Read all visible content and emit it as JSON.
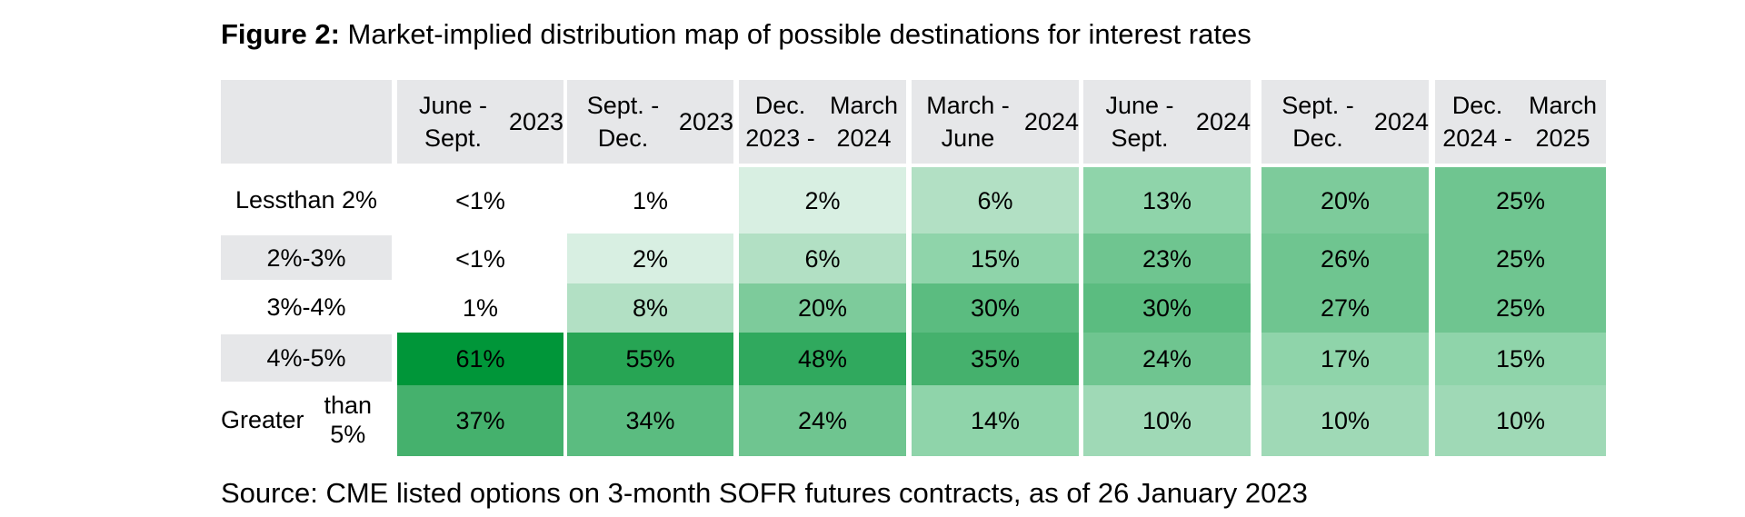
{
  "figure": {
    "label": "Figure 2:",
    "title": " Market-implied distribution map of possible destinations for interest rates",
    "source": "Source: CME listed options on 3-month SOFR futures contracts, as of 26 January 2023"
  },
  "chart_data": {
    "type": "heatmap",
    "title": "Market-implied distribution map of possible destinations for interest rates",
    "columns": [
      "June - Sept. 2023",
      "Sept. - Dec. 2023",
      "Dec. 2023 - March 2024",
      "March - June 2024",
      "June - Sept. 2024",
      "Sept. - Dec. 2024",
      "Dec. 2024 - March 2025"
    ],
    "column_lines": [
      [
        "June - Sept.",
        "2023"
      ],
      [
        "Sept. - Dec.",
        "2023"
      ],
      [
        "Dec. 2023 -",
        "March 2024"
      ],
      [
        "March - June",
        "2024"
      ],
      [
        "June - Sept.",
        "2024"
      ],
      [
        "Sept. - Dec.",
        "2024"
      ],
      [
        "Dec. 2024 -",
        "March 2025"
      ]
    ],
    "rows": [
      "Less than 2%",
      "2%-3%",
      "3%-4%",
      "4%-5%",
      "Greater than 5%"
    ],
    "row_lines": [
      [
        "Less",
        "than 2%"
      ],
      [
        "2%-3%"
      ],
      [
        "3%-4%"
      ],
      [
        "4%-5%"
      ],
      [
        "Greater",
        "than 5%"
      ]
    ],
    "cell_labels": [
      [
        "<1%",
        "1%",
        "2%",
        "6%",
        "13%",
        "20%",
        "25%"
      ],
      [
        "<1%",
        "2%",
        "6%",
        "15%",
        "23%",
        "26%",
        "25%"
      ],
      [
        "1%",
        "8%",
        "20%",
        "30%",
        "30%",
        "27%",
        "25%"
      ],
      [
        "61%",
        "55%",
        "48%",
        "35%",
        "24%",
        "17%",
        "15%"
      ],
      [
        "37%",
        "34%",
        "24%",
        "14%",
        "10%",
        "10%",
        "10%"
      ]
    ],
    "values": [
      [
        0.5,
        1,
        2,
        6,
        13,
        20,
        25
      ],
      [
        0.5,
        2,
        6,
        15,
        23,
        26,
        25
      ],
      [
        1,
        8,
        20,
        30,
        30,
        27,
        25
      ],
      [
        61,
        55,
        48,
        35,
        24,
        17,
        15
      ],
      [
        37,
        34,
        24,
        14,
        10,
        10,
        10
      ]
    ],
    "colors": {
      "header_bg": "#e6e7e9",
      "label_alt_bg": "#e6e7e9",
      "scale": [
        "#ffffff",
        "#d8efe2",
        "#c7ead5",
        "#b2e0c4",
        "#9fd9b6",
        "#8fd4aa",
        "#7dcb9b",
        "#6fc590",
        "#5bbc80",
        "#45b16d",
        "#30a95e",
        "#27a554",
        "#009639"
      ]
    }
  }
}
